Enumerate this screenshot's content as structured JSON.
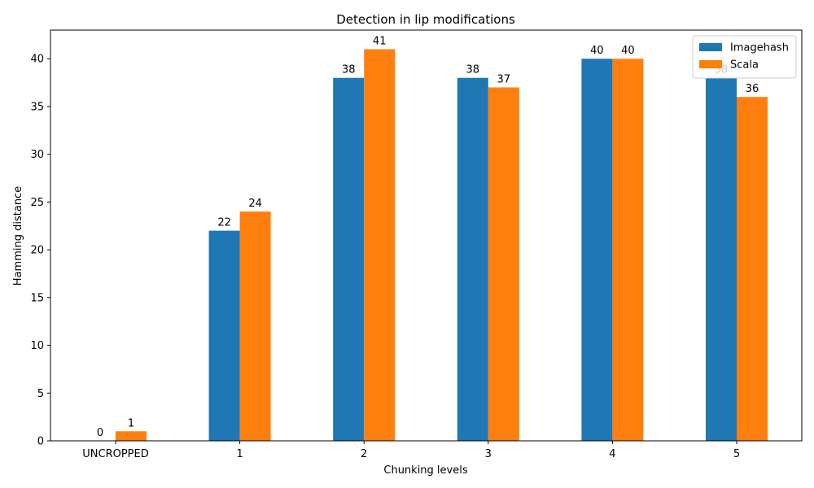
{
  "chart_data": {
    "type": "bar",
    "title": "Detection in lip modifications",
    "xlabel": "Chunking levels",
    "ylabel": "Hamming distance",
    "categories": [
      "UNCROPPED",
      "1",
      "2",
      "3",
      "4",
      "5"
    ],
    "series": [
      {
        "name": "Imagehash",
        "values": [
          0,
          22,
          38,
          38,
          40,
          38
        ],
        "color": "#1f77b4"
      },
      {
        "name": "Scala",
        "values": [
          1,
          24,
          41,
          37,
          40,
          36
        ],
        "color": "#ff7f0e"
      }
    ],
    "ylim": [
      0,
      43
    ],
    "yticks": [
      0,
      5,
      10,
      15,
      20,
      25,
      30,
      35,
      40
    ],
    "grid": false,
    "legend_position": "top-right"
  }
}
